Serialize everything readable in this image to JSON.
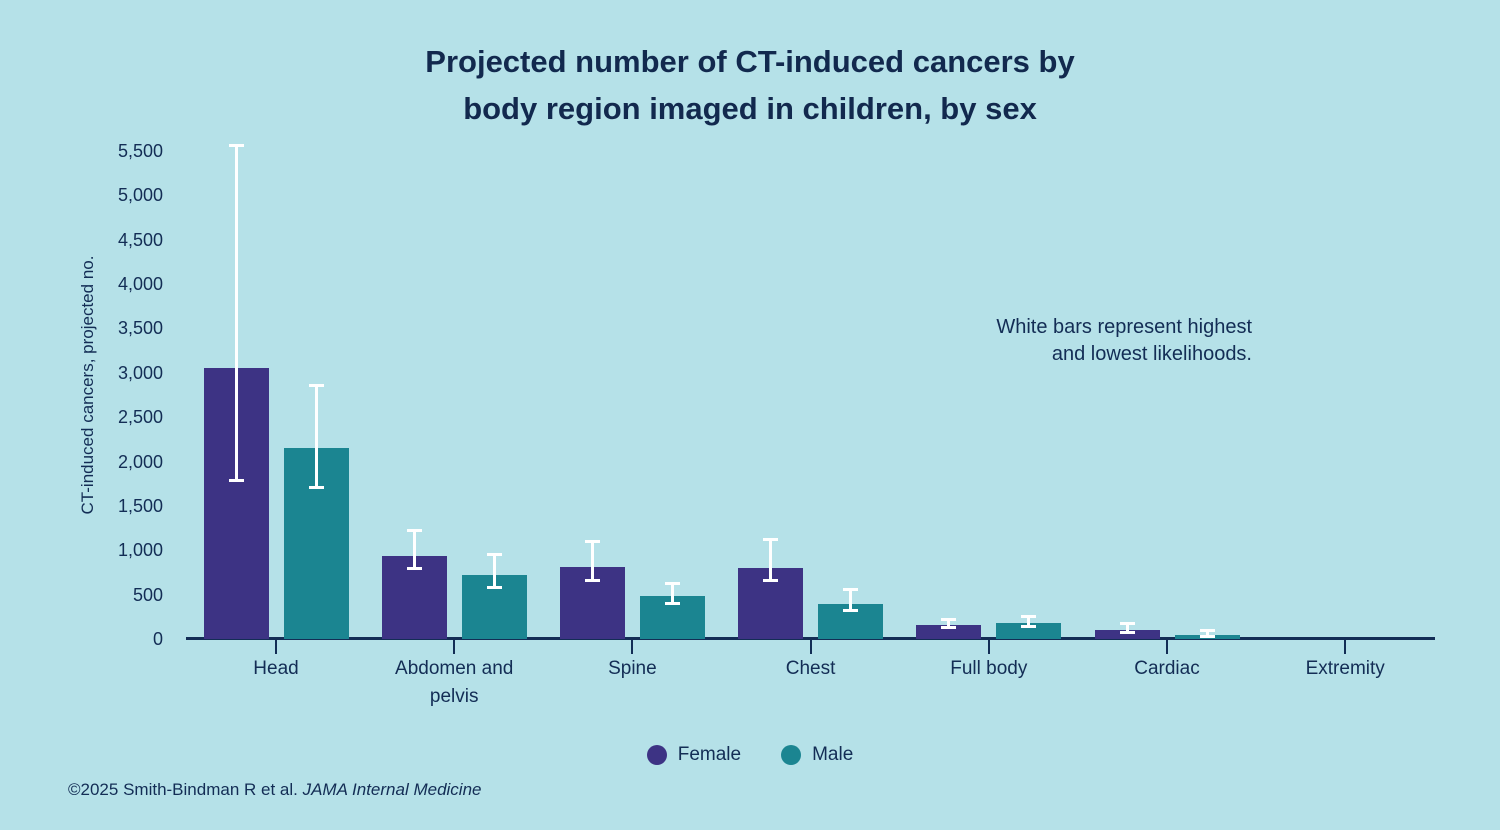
{
  "title": "Projected number of CT-induced cancers by\nbody region imaged in children, by sex",
  "annotation": "White bars represent highest\nand lowest likelihoods.",
  "footer": {
    "prefix": "©2025 Smith-Bindman R et al. ",
    "journal": "JAMA Internal Medicine"
  },
  "colors": {
    "background": "#b5e1e8",
    "text_navy": "#132d55",
    "female": "#3d3384",
    "male": "#1b8591",
    "error_bar": "#ffffff"
  },
  "chart_data": {
    "type": "bar",
    "title": "Projected number of CT-induced cancers by body region imaged in children, by sex",
    "xlabel": "",
    "ylabel": "CT-induced cancers, projected no.",
    "ylim": [
      0,
      5500
    ],
    "ytick_step": 500,
    "grid": false,
    "legend_position": "bottom",
    "error_bars_note": "White bars represent highest and lowest likelihoods.",
    "categories": [
      "Head",
      "Abdomen and\npelvis",
      "Spine",
      "Chest",
      "Full body",
      "Cardiac",
      "Extremity"
    ],
    "series": [
      {
        "name": "Female",
        "color": "#3d3384",
        "values": [
          3050,
          940,
          810,
          800,
          160,
          105,
          0
        ],
        "err_low": [
          1780,
          790,
          650,
          650,
          120,
          65,
          null
        ],
        "err_high": [
          5570,
          1230,
          1110,
          1130,
          230,
          175,
          null
        ]
      },
      {
        "name": "Male",
        "color": "#1b8591",
        "values": [
          2150,
          720,
          480,
          400,
          175,
          50,
          0
        ],
        "err_low": [
          1700,
          580,
          390,
          310,
          140,
          25,
          null
        ],
        "err_high": [
          2860,
          960,
          630,
          560,
          260,
          105,
          null
        ]
      }
    ]
  },
  "layout_hints": {
    "note": "values are chart content; rendering geometry computed in script"
  }
}
